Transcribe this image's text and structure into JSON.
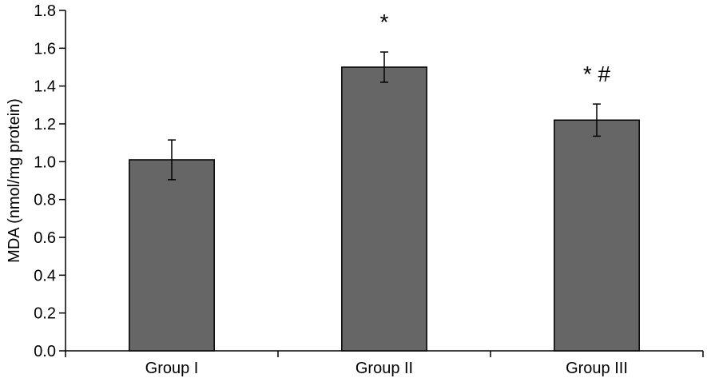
{
  "chart_data": {
    "type": "bar",
    "title": "",
    "xlabel": "",
    "ylabel": "MDA (nmol/mg protein)",
    "categories": [
      "Group I",
      "Group II",
      "Group III"
    ],
    "values": [
      1.01,
      1.5,
      1.22
    ],
    "errors": [
      0.105,
      0.08,
      0.085
    ],
    "annotations": [
      "",
      "*",
      "* #"
    ],
    "ylim": [
      0,
      1.8
    ],
    "yticks": [
      "0.0",
      "0.2",
      "0.4",
      "0.6",
      "0.8",
      "1.0",
      "1.2",
      "1.4",
      "1.6",
      "1.8"
    ],
    "grid": false,
    "legend": "none",
    "bar_color": "#666666"
  }
}
